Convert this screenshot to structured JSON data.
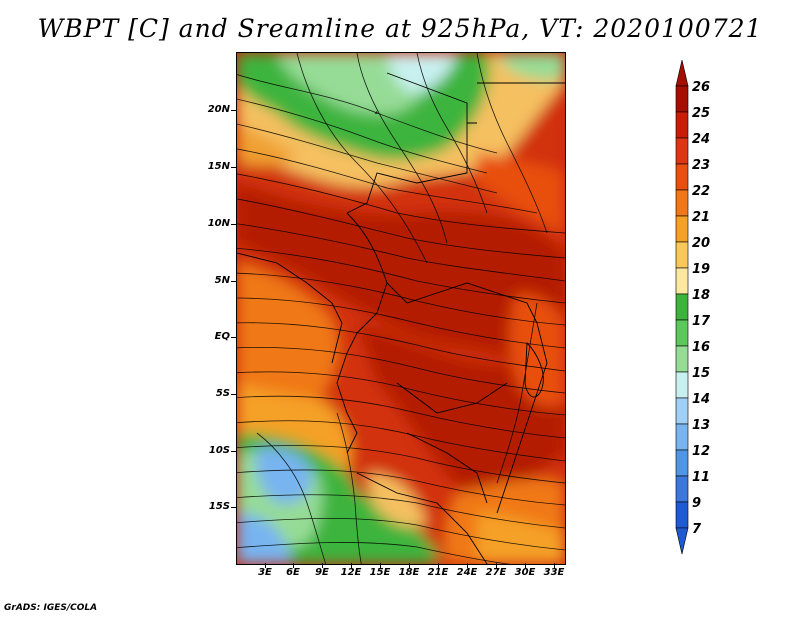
{
  "title": "WBPT [C] and Sreamline at 925hPa, VT: 2020100721",
  "footer": "GrADS: IGES/COLA",
  "map": {
    "lat_labels": [
      "20N",
      "15N",
      "10N",
      "5N",
      "EQ",
      "5S",
      "10S",
      "15S"
    ],
    "lon_labels": [
      "3E",
      "6E",
      "9E",
      "12E",
      "15E",
      "18E",
      "21E",
      "24E",
      "27E",
      "30E",
      "33E"
    ],
    "lon_range": [
      0,
      34
    ],
    "lat_range": [
      -20,
      24.5
    ]
  },
  "colorbar": {
    "levels": [
      "26",
      "25",
      "24",
      "23",
      "22",
      "21",
      "20",
      "19",
      "18",
      "17",
      "16",
      "15",
      "14",
      "13",
      "12",
      "11",
      "9",
      "7"
    ],
    "colors": [
      "#a50f00",
      "#c81e05",
      "#dc3712",
      "#e8500f",
      "#f07818",
      "#f5a028",
      "#fac85a",
      "#fde8a0",
      "#3cb43c",
      "#5ac85a",
      "#96dc96",
      "#c8f0f0",
      "#a0d0f5",
      "#78b4f0",
      "#5096e6",
      "#3c78dc",
      "#1e5ad2"
    ]
  }
}
